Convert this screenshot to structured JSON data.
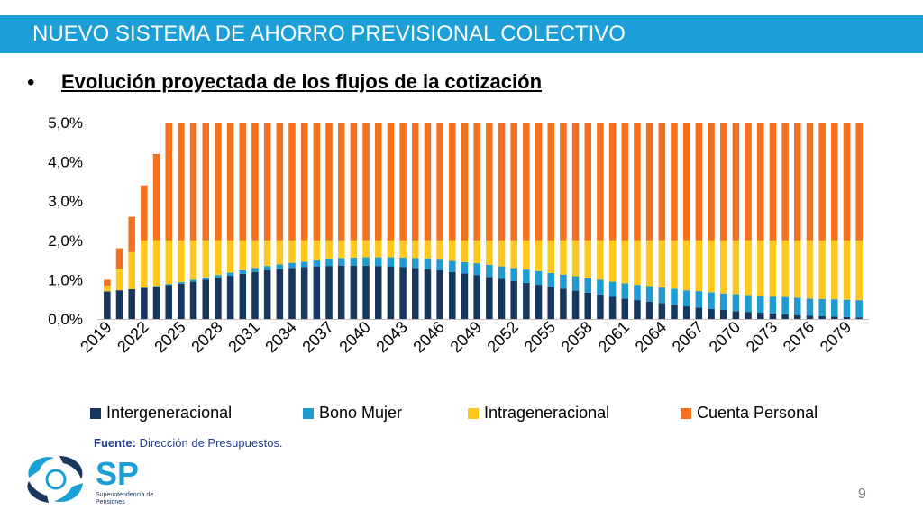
{
  "header": {
    "title": "NUEVO SISTEMA DE AHORRO PREVISIONAL COLECTIVO"
  },
  "slide": {
    "bullet": "•",
    "subtitle": "Evolución proyectada de los flujos de la cotización",
    "source_label": "Fuente:",
    "source_text": " Dirección de Presupuestos.",
    "page_number": "9"
  },
  "logo": {
    "mark": "SP",
    "line1": "Superintendencia de",
    "line2": "Pensiones"
  },
  "colors": {
    "header": "#1c9ed6",
    "intergeneracional": "#17375e",
    "bono_mujer": "#1f9bd1",
    "intrageneracional": "#ffc81a",
    "cuenta_personal": "#f4701e"
  },
  "chart_data": {
    "type": "bar",
    "stacked": true,
    "x_start": 2019,
    "x_end": 2080,
    "x_tick_labels": [
      "2019",
      "2022",
      "2025",
      "2028",
      "2031",
      "2034",
      "2037",
      "2040",
      "2043",
      "2046",
      "2049",
      "2052",
      "2055",
      "2058",
      "2061",
      "2064",
      "2067",
      "2070",
      "2073",
      "2076",
      "2079"
    ],
    "y_tick_labels": [
      "0,0%",
      "1,0%",
      "2,0%",
      "3,0%",
      "4,0%",
      "5,0%"
    ],
    "ylim": [
      0,
      5
    ],
    "y_unit": "%",
    "legend_position": "bottom",
    "series": [
      {
        "name": "Intergeneracional",
        "color": "#17375e",
        "values": [
          0.7,
          0.73,
          0.76,
          0.79,
          0.82,
          0.86,
          0.9,
          0.95,
          1.0,
          1.05,
          1.1,
          1.15,
          1.2,
          1.24,
          1.27,
          1.3,
          1.32,
          1.34,
          1.35,
          1.36,
          1.36,
          1.36,
          1.35,
          1.34,
          1.32,
          1.3,
          1.27,
          1.24,
          1.2,
          1.16,
          1.12,
          1.07,
          1.02,
          0.97,
          0.92,
          0.87,
          0.82,
          0.77,
          0.72,
          0.67,
          0.62,
          0.57,
          0.52,
          0.48,
          0.44,
          0.4,
          0.36,
          0.32,
          0.29,
          0.26,
          0.23,
          0.2,
          0.18,
          0.16,
          0.14,
          0.12,
          0.1,
          0.08,
          0.07,
          0.06,
          0.05,
          0.04
        ]
      },
      {
        "name": "Bono Mujer",
        "color": "#1f9bd1",
        "values": [
          0,
          0,
          0,
          0.01,
          0.02,
          0.03,
          0.04,
          0.05,
          0.06,
          0.07,
          0.08,
          0.09,
          0.1,
          0.11,
          0.12,
          0.13,
          0.14,
          0.15,
          0.17,
          0.19,
          0.2,
          0.21,
          0.22,
          0.23,
          0.24,
          0.25,
          0.26,
          0.27,
          0.28,
          0.29,
          0.3,
          0.31,
          0.32,
          0.33,
          0.34,
          0.35,
          0.35,
          0.36,
          0.37,
          0.37,
          0.38,
          0.38,
          0.39,
          0.39,
          0.4,
          0.4,
          0.41,
          0.41,
          0.42,
          0.42,
          0.42,
          0.43,
          0.43,
          0.43,
          0.43,
          0.44,
          0.44,
          0.44,
          0.44,
          0.44,
          0.44,
          0.44
        ]
      },
      {
        "name": "Intrageneracional",
        "color": "#ffc81a",
        "values": [
          0.15,
          0.55,
          0.94,
          1.2,
          1.16,
          1.11,
          1.06,
          1.0,
          0.94,
          0.88,
          0.82,
          0.76,
          0.7,
          0.65,
          0.61,
          0.57,
          0.54,
          0.51,
          0.48,
          0.45,
          0.44,
          0.43,
          0.43,
          0.43,
          0.44,
          0.45,
          0.47,
          0.49,
          0.52,
          0.55,
          0.58,
          0.62,
          0.66,
          0.7,
          0.74,
          0.78,
          0.83,
          0.87,
          0.91,
          0.96,
          1.0,
          1.05,
          1.09,
          1.13,
          1.16,
          1.2,
          1.23,
          1.27,
          1.29,
          1.32,
          1.35,
          1.37,
          1.39,
          1.41,
          1.43,
          1.44,
          1.46,
          1.48,
          1.49,
          1.5,
          1.51,
          1.52
        ]
      },
      {
        "name": "Cuenta Personal",
        "color": "#f4701e",
        "values": [
          0.15,
          0.52,
          0.9,
          1.4,
          2.2,
          3.0,
          3.0,
          3.0,
          3.0,
          3.0,
          3.0,
          3.0,
          3.0,
          3.0,
          3.0,
          3.0,
          3.0,
          3.0,
          3.0,
          3.0,
          3.0,
          3.0,
          3.0,
          3.0,
          3.0,
          3.0,
          3.0,
          3.0,
          3.0,
          3.0,
          3.0,
          3.0,
          3.0,
          3.0,
          3.0,
          3.0,
          3.0,
          3.0,
          3.0,
          3.0,
          3.0,
          3.0,
          3.0,
          3.0,
          3.0,
          3.0,
          3.0,
          3.0,
          3.0,
          3.0,
          3.0,
          3.0,
          3.0,
          3.0,
          3.0,
          3.0,
          3.0,
          3.0,
          3.0,
          3.0,
          3.0,
          3.0
        ]
      }
    ]
  }
}
